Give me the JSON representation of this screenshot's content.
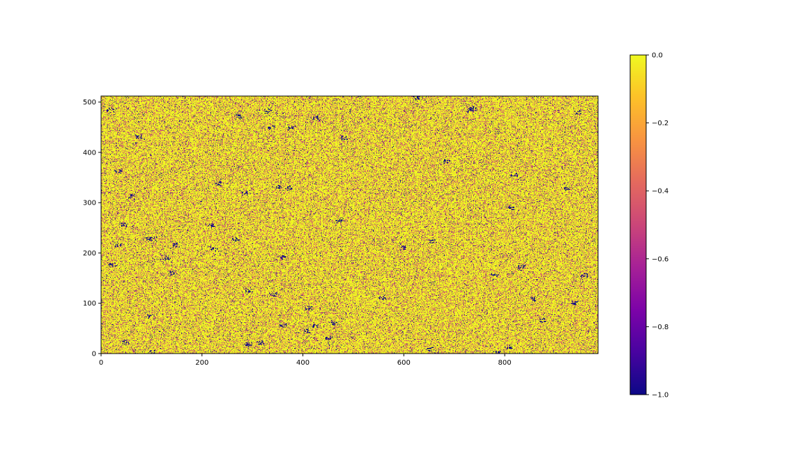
{
  "chart_data": {
    "type": "heatmap",
    "title": "",
    "xlabel": "",
    "ylabel": "",
    "xlim": [
      0,
      985
    ],
    "ylim": [
      0,
      512
    ],
    "x_ticks": [
      0,
      200,
      400,
      600,
      800
    ],
    "x_tick_labels": [
      "0",
      "200",
      "400",
      "600",
      "800"
    ],
    "y_ticks": [
      0,
      100,
      200,
      300,
      400,
      500
    ],
    "y_tick_labels": [
      "0",
      "100",
      "200",
      "300",
      "400",
      "500"
    ],
    "value_range": [
      -1.0,
      0.0
    ],
    "colormap": "plasma",
    "value_distribution": {
      "dominant_value": 0.0,
      "note_values": [
        0.0,
        -0.5,
        -1.0
      ],
      "approx_fractions": [
        0.72,
        0.22,
        0.06
      ]
    },
    "grid": false,
    "colorbar": {
      "position": "right",
      "ticks": [
        0.0,
        -0.2,
        -0.4,
        -0.6,
        -0.8,
        -1.0
      ],
      "tick_labels": [
        "0.0",
        "−0.2",
        "−0.4",
        "−0.6",
        "−0.8",
        "−1.0"
      ]
    }
  },
  "colors": {
    "low": "#0d0887",
    "mid": "#cc4778",
    "high": "#f0f921"
  }
}
